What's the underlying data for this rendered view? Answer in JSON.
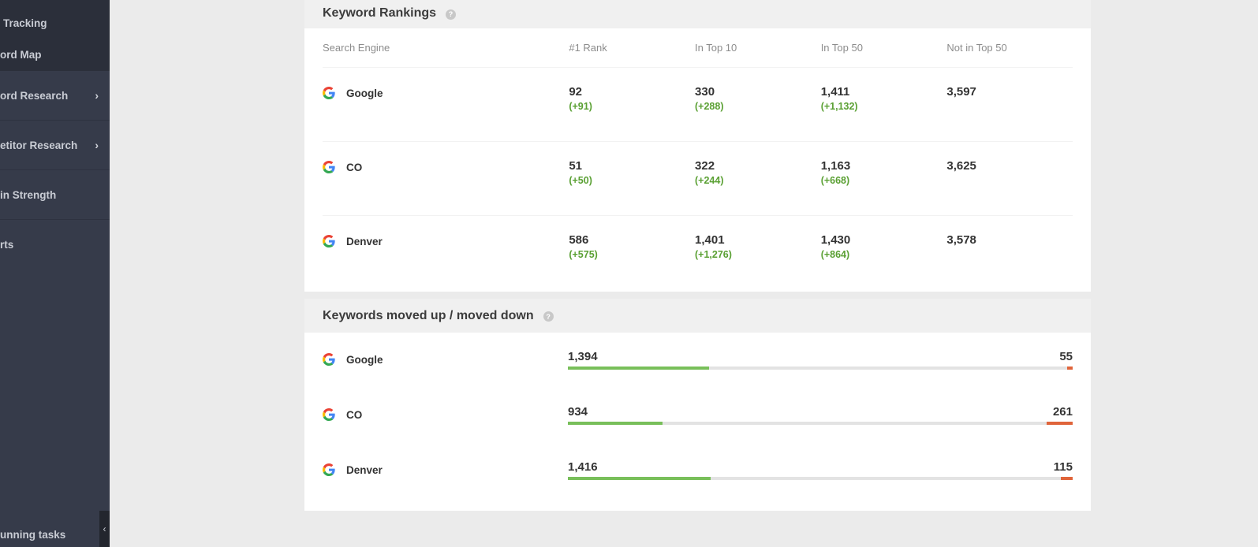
{
  "sidebar": {
    "sub_items": [
      {
        "label": "Tracking"
      },
      {
        "label": "ord Map"
      }
    ],
    "items": [
      {
        "label": "ord Research",
        "chevron": "›"
      },
      {
        "label": "etitor Research",
        "chevron": "›"
      },
      {
        "label": "in Strength"
      },
      {
        "label": "rts"
      }
    ],
    "bottom_label": "unning tasks",
    "collapse_glyph": "‹"
  },
  "rankings": {
    "title": "Keyword Rankings",
    "help_glyph": "?",
    "columns": [
      "Search Engine",
      "#1 Rank",
      "In Top 10",
      "In Top 50",
      "Not in Top 50"
    ],
    "rows": [
      {
        "engine": "Google",
        "rank1": "92",
        "rank1_delta": "(+91)",
        "top10": "330",
        "top10_delta": "(+288)",
        "top50": "1,411",
        "top50_delta": "(+1,132)",
        "not50": "3,597"
      },
      {
        "engine": "CO",
        "rank1": "51",
        "rank1_delta": "(+50)",
        "top10": "322",
        "top10_delta": "(+244)",
        "top50": "1,163",
        "top50_delta": "(+668)",
        "not50": "3,625"
      },
      {
        "engine": "Denver",
        "rank1": "586",
        "rank1_delta": "(+575)",
        "top10": "1,401",
        "top10_delta": "(+1,276)",
        "top50": "1,430",
        "top50_delta": "(+864)",
        "not50": "3,578"
      }
    ]
  },
  "moves": {
    "title": "Keywords moved up / moved down",
    "help_glyph": "?",
    "rows": [
      {
        "engine": "Google",
        "up": "1,394",
        "down": "55",
        "up_fraction": 0.28,
        "down_fraction": 0.011
      },
      {
        "engine": "CO",
        "up": "934",
        "down": "261",
        "up_fraction": 0.187,
        "down_fraction": 0.052
      },
      {
        "engine": "Denver",
        "up": "1,416",
        "down": "115",
        "up_fraction": 0.283,
        "down_fraction": 0.023
      }
    ]
  },
  "colors": {
    "positive": "#5aa033",
    "up_bar": "#78bf5a",
    "down_bar": "#e0643a",
    "sidebar_bg": "#363b4a"
  },
  "icons": {
    "engine": "google-g-icon",
    "help": "question-circle-icon",
    "chevron": "chevron-right-icon",
    "collapse": "chevron-left-icon"
  }
}
